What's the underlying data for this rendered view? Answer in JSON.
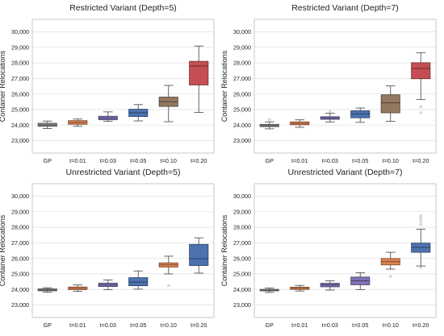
{
  "chart_data": [
    {
      "type": "box",
      "title": "Restricted Variant (Depth=5)",
      "ylabel": "Container Relocations",
      "xlabel": "",
      "ylim": [
        22200,
        30800
      ],
      "yticks": [
        23000,
        24000,
        25000,
        26000,
        27000,
        28000,
        29000,
        30000
      ],
      "ytick_labels": [
        "23,000",
        "24,000",
        "25,000",
        "26,000",
        "27,000",
        "28,000",
        "29,000",
        "30,000"
      ],
      "categories": [
        "GP",
        "t=0.01",
        "t=0.03",
        "t=0.05",
        "t=0.10",
        "t=0.20"
      ],
      "colors": [
        "#8c8c8c",
        "#dd8452",
        "#8172b3",
        "#4c72b0",
        "#937860",
        "#c44e52"
      ],
      "grid": true,
      "boxes": [
        {
          "whislo": 23780,
          "q1": 23920,
          "med": 24010,
          "q3": 24120,
          "whishi": 24260,
          "fliers": []
        },
        {
          "whislo": 23920,
          "q1": 24050,
          "med": 24170,
          "q3": 24290,
          "whishi": 24390,
          "fliers": []
        },
        {
          "whislo": 24240,
          "q1": 24340,
          "med": 24450,
          "q3": 24570,
          "whishi": 24850,
          "fliers": []
        },
        {
          "whislo": 24270,
          "q1": 24550,
          "med": 24800,
          "q3": 25020,
          "whishi": 25320,
          "fliers": []
        },
        {
          "whislo": 24220,
          "q1": 25200,
          "med": 25500,
          "q3": 25800,
          "whishi": 26550,
          "fliers": []
        },
        {
          "whislo": 24820,
          "q1": 26580,
          "med": 27800,
          "q3": 28100,
          "whishi": 29080,
          "fliers": []
        }
      ]
    },
    {
      "type": "box",
      "title": "Restricted Variant (Depth=7)",
      "ylabel": "Container Relocations",
      "xlabel": "",
      "ylim": [
        22200,
        30800
      ],
      "yticks": [
        23000,
        24000,
        25000,
        26000,
        27000,
        28000,
        29000,
        30000
      ],
      "ytick_labels": [
        "23,000",
        "24,000",
        "25,000",
        "26,000",
        "27,000",
        "28,000",
        "29,000",
        "30,000"
      ],
      "categories": [
        "GP",
        "t=0.01",
        "t=0.03",
        "t=0.05",
        "t=0.10",
        "t=0.20"
      ],
      "colors": [
        "#8c8c8c",
        "#dd8452",
        "#8172b3",
        "#4c72b0",
        "#937860",
        "#c44e52"
      ],
      "grid": true,
      "boxes": [
        {
          "whislo": 23760,
          "q1": 23900,
          "med": 23970,
          "q3": 24050,
          "whishi": 24210,
          "fliers": [
            24360
          ]
        },
        {
          "whislo": 23860,
          "q1": 24020,
          "med": 24110,
          "q3": 24210,
          "whishi": 24340,
          "fliers": []
        },
        {
          "whislo": 24200,
          "q1": 24370,
          "med": 24460,
          "q3": 24540,
          "whishi": 24760,
          "fliers": [
            24880
          ]
        },
        {
          "whislo": 24180,
          "q1": 24470,
          "med": 24720,
          "q3": 24920,
          "whishi": 25100,
          "fliers": []
        },
        {
          "whislo": 24240,
          "q1": 24790,
          "med": 25430,
          "q3": 25950,
          "whishi": 26520,
          "fliers": []
        },
        {
          "whislo": 25640,
          "q1": 26980,
          "med": 27640,
          "q3": 28010,
          "whishi": 28660,
          "fliers": [
            25180,
            24790
          ]
        }
      ]
    },
    {
      "type": "box",
      "title": "Unrestricted Variant (Depth=5)",
      "ylabel": "Container Relocations",
      "xlabel": "",
      "ylim": [
        22200,
        30800
      ],
      "yticks": [
        23000,
        24000,
        25000,
        26000,
        27000,
        28000,
        29000,
        30000
      ],
      "ytick_labels": [
        "23,000",
        "24,000",
        "25,000",
        "26,000",
        "27,000",
        "28,000",
        "29,000",
        "30,000"
      ],
      "categories": [
        "GP",
        "t=0.01",
        "t=0.03",
        "t=0.05",
        "t=0.10",
        "t=0.20"
      ],
      "colors": [
        "#8c8c8c",
        "#dd8452",
        "#8172b3",
        "#4c72b0",
        "#dd8452",
        "#4c72b0"
      ],
      "grid": true,
      "boxes": [
        {
          "whislo": 23820,
          "q1": 23910,
          "med": 23970,
          "q3": 24040,
          "whishi": 24110,
          "fliers": []
        },
        {
          "whislo": 23880,
          "q1": 23990,
          "med": 24070,
          "q3": 24160,
          "whishi": 24290,
          "fliers": []
        },
        {
          "whislo": 23990,
          "q1": 24190,
          "med": 24290,
          "q3": 24410,
          "whishi": 24610,
          "fliers": []
        },
        {
          "whislo": 24020,
          "q1": 24240,
          "med": 24470,
          "q3": 24760,
          "whishi": 25190,
          "fliers": []
        },
        {
          "whislo": 25000,
          "q1": 25440,
          "med": 25580,
          "q3": 25710,
          "whishi": 26140,
          "fliers": [
            24250
          ]
        },
        {
          "whislo": 25050,
          "q1": 25540,
          "med": 25980,
          "q3": 26900,
          "whishi": 27320,
          "fliers": []
        }
      ]
    },
    {
      "type": "box",
      "title": "Unrestricted Variant (Depth=7)",
      "ylabel": "Container Relocations",
      "xlabel": "",
      "ylim": [
        22200,
        30800
      ],
      "yticks": [
        23000,
        24000,
        25000,
        26000,
        27000,
        28000,
        29000,
        30000
      ],
      "ytick_labels": [
        "23,000",
        "24,000",
        "25,000",
        "26,000",
        "27,000",
        "28,000",
        "29,000",
        "30,000"
      ],
      "categories": [
        "GP",
        "t=0.01",
        "t=0.03",
        "t=0.05",
        "t=0.10",
        "t=0.20"
      ],
      "colors": [
        "#8c8c8c",
        "#dd8452",
        "#8172b3",
        "#8172b3",
        "#dd8452",
        "#4c72b0"
      ],
      "grid": true,
      "boxes": [
        {
          "whislo": 23810,
          "q1": 23910,
          "med": 23950,
          "q3": 24010,
          "whishi": 24090,
          "fliers": []
        },
        {
          "whislo": 23900,
          "q1": 24000,
          "med": 24080,
          "q3": 24150,
          "whishi": 24260,
          "fliers": []
        },
        {
          "whislo": 23960,
          "q1": 24170,
          "med": 24290,
          "q3": 24400,
          "whishi": 24560,
          "fliers": []
        },
        {
          "whislo": 23990,
          "q1": 24300,
          "med": 24560,
          "q3": 24800,
          "whishi": 25080,
          "fliers": []
        },
        {
          "whislo": 25310,
          "q1": 25580,
          "med": 25790,
          "q3": 25990,
          "whishi": 26390,
          "fliers": [
            24850
          ]
        },
        {
          "whislo": 25510,
          "q1": 26390,
          "med": 26700,
          "q3": 26980,
          "whishi": 27880,
          "fliers": [
            25420,
            28180,
            28380,
            28560,
            28730
          ]
        }
      ]
    }
  ]
}
